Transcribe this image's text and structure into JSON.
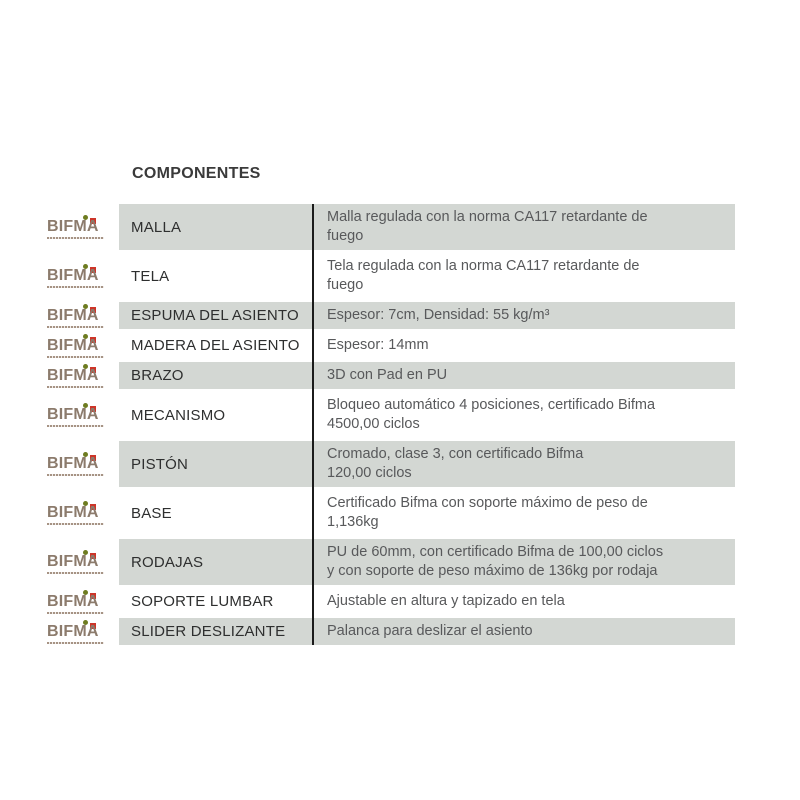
{
  "title": "COMPONENTES",
  "logo": {
    "brand": "BIFMA"
  },
  "colors": {
    "row_shaded_bg": "#d3d7d3",
    "row_plain_bg": "#ffffff",
    "divider": "#1b1b1b",
    "title_text": "#3a3a3a",
    "name_text": "#2e2f2f",
    "desc_text": "#58595b",
    "logo_brown": "#8c7b6c",
    "logo_green_dot": "#6e7c20",
    "logo_red_square": "#cd3529"
  },
  "rows": [
    {
      "name": "MALLA",
      "desc": "Malla regulada con la norma CA117 retardante de\nfuego",
      "shaded": true
    },
    {
      "name": "TELA",
      "desc": "Tela regulada con la norma CA117 retardante de\nfuego",
      "shaded": false
    },
    {
      "name": "ESPUMA DEL ASIENTO",
      "desc": "Espesor: 7cm, Densidad: 55 kg/m³",
      "shaded": true
    },
    {
      "name": "MADERA DEL ASIENTO",
      "desc": "Espesor: 14mm",
      "shaded": false
    },
    {
      "name": "BRAZO",
      "desc": "3D con Pad en PU",
      "shaded": true
    },
    {
      "name": "MECANISMO",
      "desc": "Bloqueo automático 4 posiciones, certificado Bifma\n4500,00 ciclos",
      "shaded": false
    },
    {
      "name": "PISTÓN",
      "desc": "Cromado, clase 3, con certificado Bifma\n120,00 ciclos",
      "shaded": true
    },
    {
      "name": "BASE",
      "desc": "Certificado Bifma con soporte máximo de peso de\n1,136kg",
      "shaded": false
    },
    {
      "name": "RODAJAS",
      "desc": "PU de 60mm, con certificado Bifma de 100,00 ciclos\ny con soporte de peso máximo de 136kg por rodaja",
      "shaded": true
    },
    {
      "name": "SOPORTE LUMBAR",
      "desc": "Ajustable en altura y tapizado en tela",
      "shaded": false
    },
    {
      "name": "SLIDER DESLIZANTE",
      "desc": "Palanca para deslizar el asiento",
      "shaded": true
    }
  ]
}
